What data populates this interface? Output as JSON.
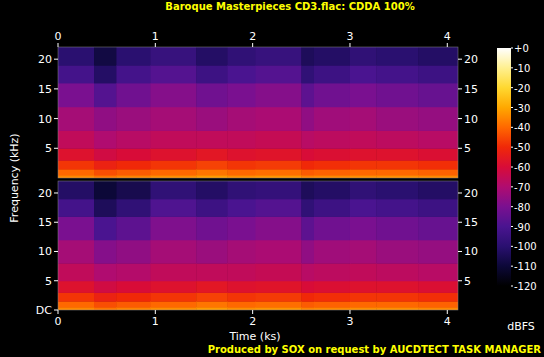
{
  "chart_data": {
    "type": "heatmap",
    "title": "Baroque Masterpieces CD3.flac: CDDA 100%",
    "x_label": "Time (ks)",
    "y_label": "Frequency (kHz)",
    "colorbar_label": "dBFS",
    "footer": "Produced by SOX on request by AUCDTECT TASK MANAGER",
    "xlim": [
      0,
      4.11
    ],
    "xticks": [
      0,
      1,
      2,
      3,
      4
    ],
    "ylim": [
      0,
      22.05
    ],
    "x": [
      0,
      0.37,
      0.6,
      0.95,
      1.42,
      1.74,
      2.03,
      2.5,
      2.63,
      3.0,
      3.27,
      3.7,
      4.11
    ],
    "y": [
      0,
      0.5,
      1.5,
      3,
      5,
      8,
      12,
      16,
      19,
      22.05
    ],
    "zlim": [
      -120,
      0
    ],
    "zticks": [
      {
        "value": 0,
        "label": "+0"
      },
      -10,
      -20,
      -30,
      -40,
      -50,
      -60,
      -70,
      -80,
      -90,
      -100,
      -110,
      -120
    ],
    "channels": [
      {
        "yticks": [
          5,
          10,
          15,
          20
        ],
        "values": [
          [
            -35,
            -40,
            -48,
            -58,
            -66,
            -72,
            -80,
            -92,
            -100
          ],
          [
            -38,
            -44,
            -52,
            -62,
            -70,
            -76,
            -88,
            -102,
            -108
          ],
          [
            -36,
            -42,
            -50,
            -60,
            -68,
            -74,
            -82,
            -92,
            -100
          ],
          [
            -34,
            -40,
            -48,
            -58,
            -66,
            -72,
            -78,
            -88,
            -96
          ],
          [
            -32,
            -38,
            -46,
            -56,
            -66,
            -74,
            -82,
            -94,
            -102
          ],
          [
            -34,
            -40,
            -48,
            -58,
            -66,
            -72,
            -80,
            -90,
            -98
          ],
          [
            -33,
            -39,
            -47,
            -57,
            -65,
            -71,
            -78,
            -88,
            -96
          ],
          [
            -36,
            -42,
            -50,
            -60,
            -68,
            -76,
            -86,
            -98,
            -104
          ],
          [
            -35,
            -41,
            -49,
            -59,
            -67,
            -73,
            -82,
            -94,
            -102
          ],
          [
            -34,
            -40,
            -48,
            -58,
            -66,
            -72,
            -80,
            -90,
            -98
          ],
          [
            -34,
            -40,
            -48,
            -58,
            -67,
            -74,
            -82,
            -92,
            -100
          ],
          [
            -35,
            -41,
            -49,
            -59,
            -68,
            -75,
            -84,
            -94,
            -102
          ]
        ]
      },
      {
        "yticks": [
          {
            "value": 0,
            "label": "DC"
          },
          5,
          10,
          15,
          20
        ],
        "values": [
          [
            -35,
            -40,
            -48,
            -58,
            -66,
            -72,
            -80,
            -92,
            -102
          ],
          [
            -38,
            -44,
            -52,
            -62,
            -70,
            -78,
            -90,
            -104,
            -110
          ],
          [
            -36,
            -42,
            -50,
            -60,
            -69,
            -76,
            -86,
            -98,
            -106
          ],
          [
            -34,
            -40,
            -48,
            -58,
            -66,
            -72,
            -79,
            -89,
            -98
          ],
          [
            -32,
            -38,
            -46,
            -56,
            -66,
            -74,
            -82,
            -94,
            -102
          ],
          [
            -34,
            -40,
            -48,
            -58,
            -66,
            -72,
            -80,
            -90,
            -98
          ],
          [
            -33,
            -39,
            -47,
            -57,
            -65,
            -71,
            -78,
            -88,
            -97
          ],
          [
            -36,
            -42,
            -50,
            -60,
            -68,
            -76,
            -86,
            -98,
            -104
          ],
          [
            -35,
            -41,
            -49,
            -59,
            -67,
            -73,
            -82,
            -94,
            -102
          ],
          [
            -34,
            -40,
            -48,
            -58,
            -66,
            -72,
            -80,
            -90,
            -98
          ],
          [
            -34,
            -40,
            -48,
            -58,
            -67,
            -74,
            -82,
            -92,
            -100
          ],
          [
            -35,
            -41,
            -49,
            -59,
            -68,
            -75,
            -84,
            -94,
            -102
          ]
        ]
      }
    ]
  }
}
